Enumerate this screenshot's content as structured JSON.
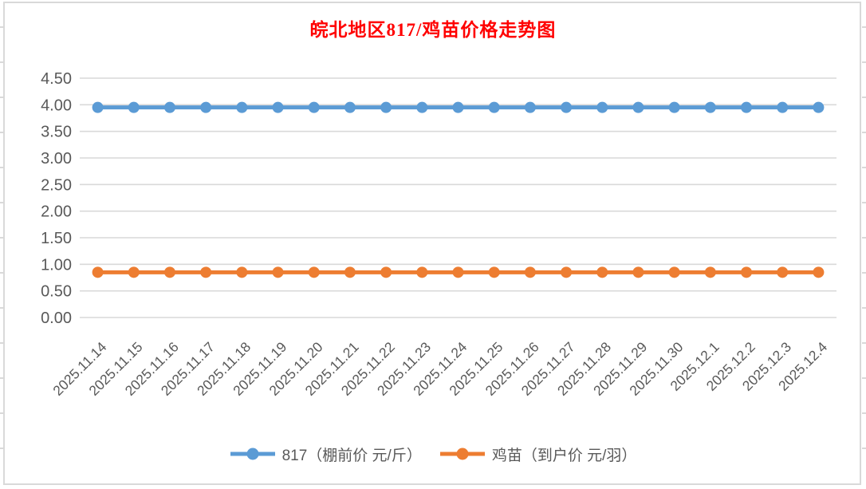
{
  "chart_data": {
    "type": "line",
    "title": "皖北地区817/鸡苗价格走势图",
    "title_color": "#FF0000",
    "categories": [
      "2025.11.14",
      "2025.11.15",
      "2025.11.16",
      "2025.11.17",
      "2025.11.18",
      "2025.11.19",
      "2025.11.20",
      "2025.11.21",
      "2025.11.22",
      "2025.11.23",
      "2025.11.24",
      "2025.11.25",
      "2025.11.26",
      "2025.11.27",
      "2025.11.28",
      "2025.11.29",
      "2025.11.30",
      "2025.12.1",
      "2025.12.2",
      "2025.12.3",
      "2025.12.4"
    ],
    "series": [
      {
        "name": "817（棚前价 元/斤）",
        "color": "#5B9BD5",
        "values": [
          3.95,
          3.95,
          3.95,
          3.95,
          3.95,
          3.95,
          3.95,
          3.95,
          3.95,
          3.95,
          3.95,
          3.95,
          3.95,
          3.95,
          3.95,
          3.95,
          3.95,
          3.95,
          3.95,
          3.95,
          3.95
        ]
      },
      {
        "name": "鸡苗（到户价 元/羽）",
        "color": "#ED7D31",
        "values": [
          0.85,
          0.85,
          0.85,
          0.85,
          0.85,
          0.85,
          0.85,
          0.85,
          0.85,
          0.85,
          0.85,
          0.85,
          0.85,
          0.85,
          0.85,
          0.85,
          0.85,
          0.85,
          0.85,
          0.85,
          0.85
        ]
      }
    ],
    "ylim": [
      0,
      4.5
    ],
    "y_tick_labels": [
      "0.00",
      "0.50",
      "1.00",
      "1.50",
      "2.00",
      "2.50",
      "3.00",
      "3.50",
      "4.00",
      "4.50"
    ],
    "xlabel": "",
    "ylabel": "",
    "grid": true,
    "legend_position": "bottom",
    "gridline_color": "#D9D9D9",
    "axis_label_color": "#595959"
  }
}
